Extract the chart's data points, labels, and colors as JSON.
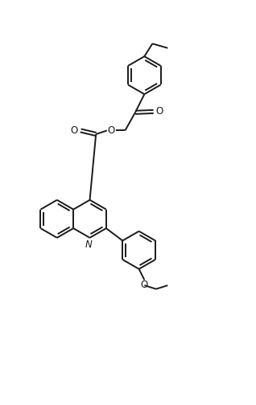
{
  "background_color": "#ffffff",
  "line_color": "#1a1a1a",
  "line_width": 1.4,
  "figsize": [
    3.18,
    5.04
  ],
  "dpi": 100,
  "xlim": [
    0.0,
    7.0
  ],
  "ylim": [
    0.0,
    11.0
  ]
}
